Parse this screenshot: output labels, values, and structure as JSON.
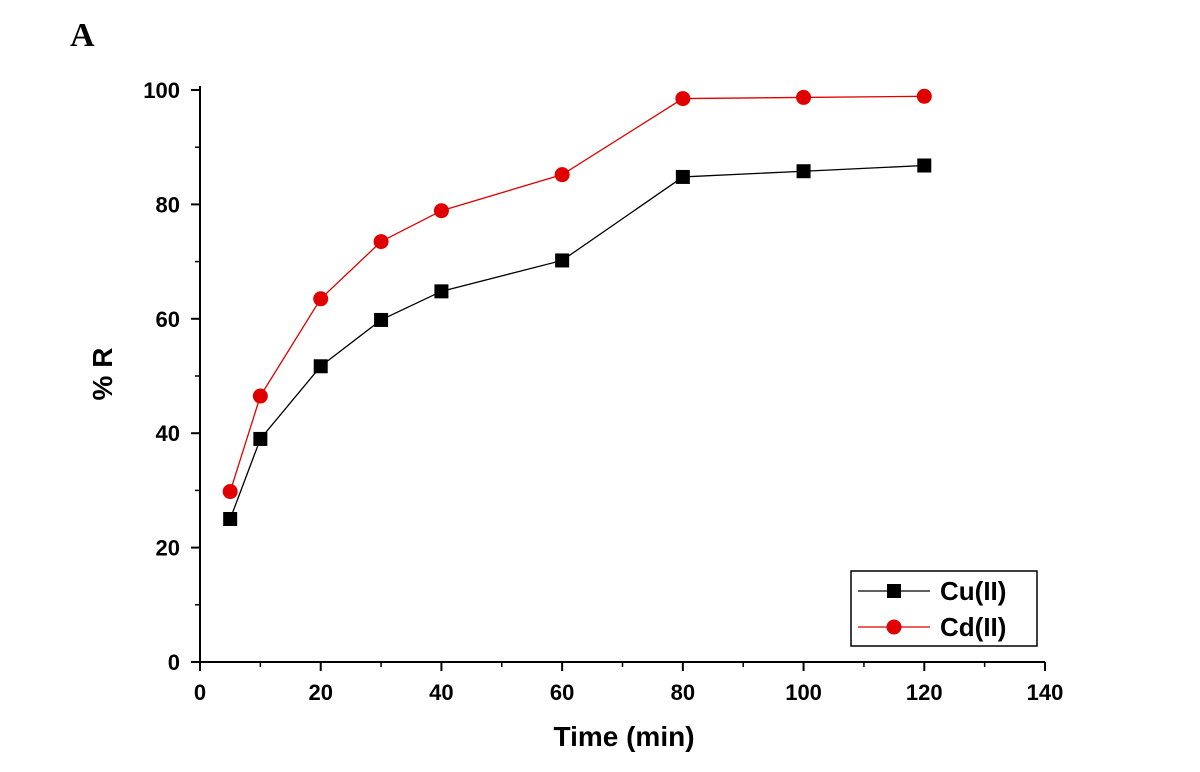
{
  "chart_data": {
    "type": "line",
    "panel_label": "A",
    "title": "",
    "xlabel": "Time (min)",
    "ylabel": "% R",
    "xlim": [
      0,
      140
    ],
    "ylim": [
      0,
      100
    ],
    "x_ticks": [
      "0",
      "20",
      "40",
      "60",
      "80",
      "100",
      "120",
      "140"
    ],
    "y_ticks": [
      "0",
      "20",
      "40",
      "60",
      "80",
      "100"
    ],
    "grid": false,
    "legend_position": "bottom-right",
    "x": [
      5,
      10,
      20,
      30,
      40,
      60,
      80,
      100,
      120
    ],
    "series": [
      {
        "name": "Cu(II)",
        "marker": "square",
        "color": "#000000",
        "values": [
          25,
          39,
          51.7,
          59.8,
          64.8,
          70.2,
          84.8,
          85.8,
          86.8
        ]
      },
      {
        "name": "Cd(II)",
        "marker": "circle",
        "color": "#e00000",
        "values": [
          29.8,
          46.5,
          63.5,
          73.5,
          78.9,
          85.2,
          98.5,
          98.7,
          98.9
        ]
      }
    ]
  }
}
